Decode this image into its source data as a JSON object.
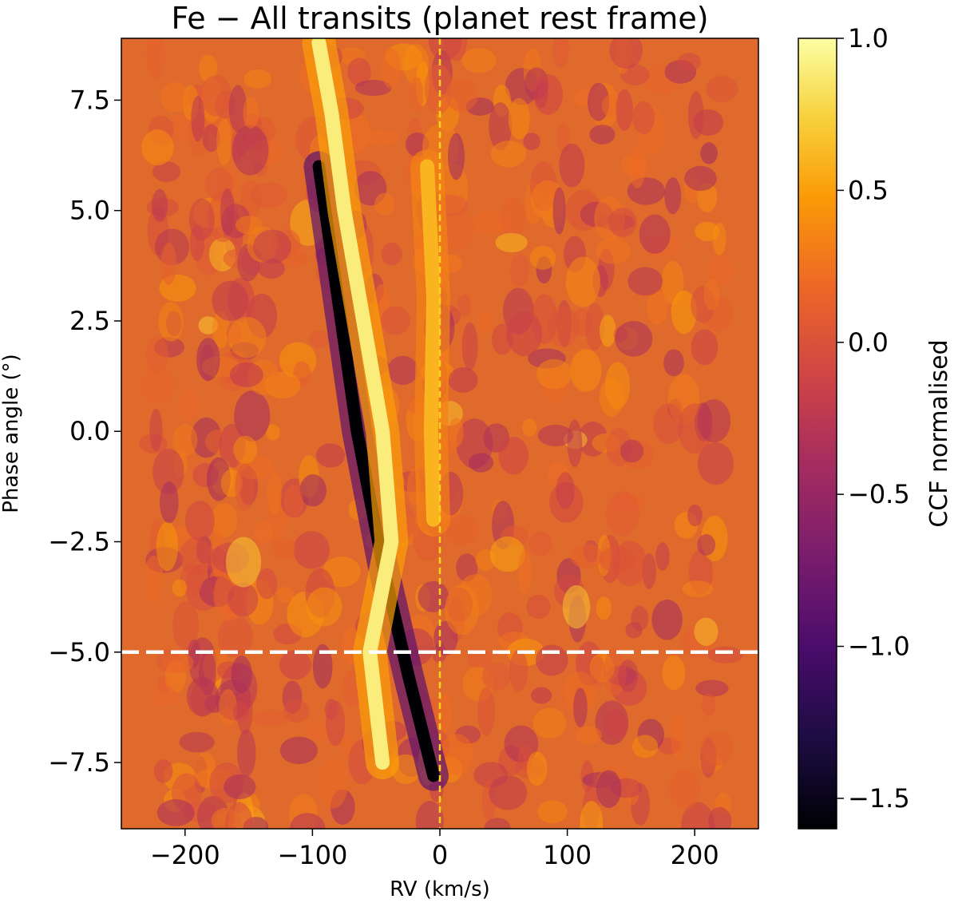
{
  "chart_data": {
    "type": "heatmap",
    "title": "Fe − All transits (planet rest frame)",
    "xlabel": "RV (km/s)",
    "ylabel": "Phase angle (°)",
    "colorbar_label": "CCF normalised",
    "colormap": "inferno",
    "xlim": [
      -250,
      250
    ],
    "ylim": [
      -9.0,
      8.9
    ],
    "xticks": [
      -200,
      -100,
      0,
      100,
      200
    ],
    "xtick_labels": [
      "−200",
      "−100",
      "0",
      "100",
      "200"
    ],
    "yticks": [
      7.5,
      5.0,
      2.5,
      0.0,
      -2.5,
      -5.0,
      -7.5
    ],
    "ytick_labels": [
      "7.5",
      "5.0",
      "2.5",
      "0.0",
      "−2.5",
      "−5.0",
      "−7.5"
    ],
    "clim": [
      -1.6,
      1.0
    ],
    "colorbar_ticks": [
      1.0,
      0.5,
      0.0,
      -0.5,
      -1.0,
      -1.5
    ],
    "colorbar_tick_labels": [
      "1.0",
      "0.5",
      "0.0",
      "−0.5",
      "−1.0",
      "−1.5"
    ],
    "reference_lines": [
      {
        "orientation": "vertical",
        "value": 0,
        "style": "dashed",
        "color": "#ffd21f"
      },
      {
        "orientation": "horizontal",
        "value": -5.0,
        "style": "dashed",
        "color": "#ffffff"
      }
    ],
    "features": [
      {
        "name": "absorption trace",
        "points": [
          [
            -95,
            6.0
          ],
          [
            -80,
            3.0
          ],
          [
            -65,
            0.0
          ],
          [
            -45,
            -3.0
          ],
          [
            -25,
            -5.5
          ],
          [
            -5,
            -7.8
          ]
        ],
        "peak_value": -1.6
      },
      {
        "name": "emission band",
        "points": [
          [
            -95,
            8.8
          ],
          [
            -85,
            7.2
          ],
          [
            -75,
            5.0
          ],
          [
            -60,
            2.5
          ],
          [
            -45,
            0.0
          ],
          [
            -38,
            -2.5
          ],
          [
            -55,
            -5.0
          ],
          [
            -45,
            -7.5
          ]
        ],
        "peak_value": 0.9
      },
      {
        "name": "emission near zero",
        "points": [
          [
            -10,
            6.0
          ],
          [
            -5,
            3.0
          ],
          [
            -7,
            0.0
          ],
          [
            -5,
            -2.0
          ]
        ],
        "peak_value": 0.6
      }
    ]
  }
}
